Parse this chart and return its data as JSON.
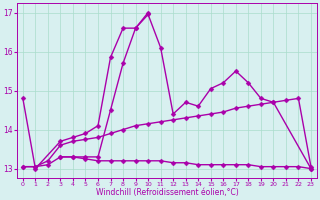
{
  "x": [
    0,
    1,
    2,
    3,
    4,
    5,
    6,
    7,
    8,
    9,
    10,
    11,
    12,
    13,
    14,
    15,
    16,
    17,
    18,
    19,
    20,
    21,
    22,
    23
  ],
  "line1": [
    14.8,
    13.0,
    null,
    13.7,
    13.8,
    13.9,
    14.1,
    15.85,
    16.6,
    16.6,
    16.95,
    16.1,
    14.4,
    14.7,
    14.6,
    15.05,
    15.2,
    15.5,
    15.2,
    14.8,
    14.7,
    null,
    null,
    13.0
  ],
  "line2": [
    null,
    null,
    null,
    13.3,
    13.3,
    13.3,
    13.3,
    14.5,
    15.7,
    16.6,
    17.0,
    null,
    null,
    null,
    null,
    null,
    null,
    null,
    null,
    null,
    null,
    null,
    null,
    null
  ],
  "line3": [
    13.05,
    13.05,
    13.2,
    13.6,
    13.7,
    13.75,
    13.8,
    13.9,
    14.0,
    14.1,
    14.15,
    14.2,
    14.25,
    14.3,
    14.35,
    14.4,
    14.45,
    14.55,
    14.6,
    14.65,
    14.7,
    14.75,
    14.8,
    13.05
  ],
  "line4": [
    13.05,
    13.05,
    13.1,
    13.3,
    13.3,
    13.25,
    13.2,
    13.2,
    13.2,
    13.2,
    13.2,
    13.2,
    13.15,
    13.15,
    13.1,
    13.1,
    13.1,
    13.1,
    13.1,
    13.05,
    13.05,
    13.05,
    13.05,
    13.0
  ],
  "ylim": [
    12.75,
    17.25
  ],
  "yticks": [
    13,
    14,
    15,
    16,
    17
  ],
  "xticks": [
    0,
    1,
    2,
    3,
    4,
    5,
    6,
    7,
    8,
    9,
    10,
    11,
    12,
    13,
    14,
    15,
    16,
    17,
    18,
    19,
    20,
    21,
    22,
    23
  ],
  "xlabel": "Windchill (Refroidissement éolien,°C)",
  "line_color": "#aa00aa",
  "bg_color": "#d8f0f0",
  "grid_color": "#aaddcc",
  "markersize": 2.5,
  "linewidth": 1.0
}
